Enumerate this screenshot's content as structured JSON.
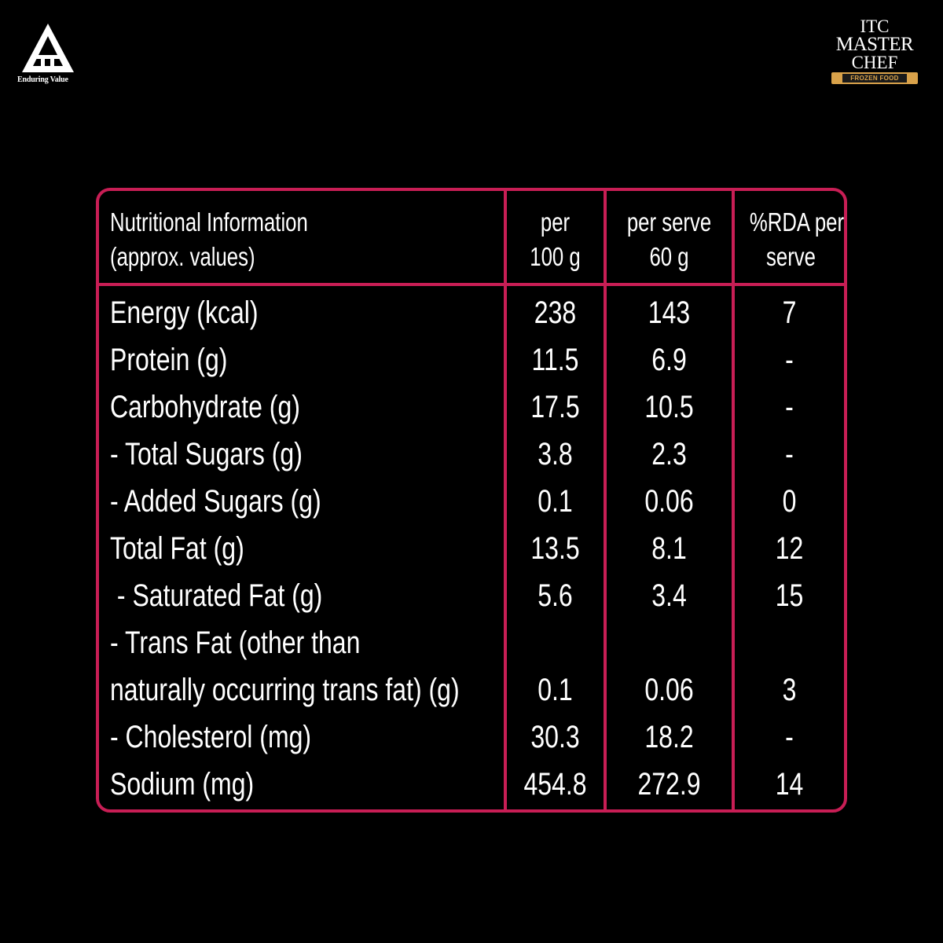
{
  "brand": {
    "itc_tagline": "Enduring Value",
    "itc_logo_letters": "ITC",
    "masterchef": {
      "line1": "ITC",
      "line2": "MASTER",
      "line3": "CHEF",
      "badge": "FROZEN FOOD"
    },
    "colors": {
      "background": "#000000",
      "table_border": "#c81e55",
      "badge_gold": "#d9a24a",
      "text": "#ffffff"
    }
  },
  "table": {
    "header": {
      "name_line1": "Nutritional Information",
      "name_line2": "(approx. values)",
      "col1_line1": "per",
      "col1_line2": "100 g",
      "col2_line1": "per serve",
      "col2_line2": "60 g",
      "col3_line1": "%RDA per",
      "col3_line2": "serve"
    },
    "rows": [
      {
        "name": "Energy (kcal)",
        "per100": "238",
        "perServe": "143",
        "rda": "7"
      },
      {
        "name": "Protein (g)",
        "per100": "11.5",
        "perServe": "6.9",
        "rda": "-"
      },
      {
        "name": "Carbohydrate (g)",
        "per100": "17.5",
        "perServe": "10.5",
        "rda": "-"
      },
      {
        "name": "- Total Sugars (g)",
        "per100": "3.8",
        "perServe": "2.3",
        "rda": "-"
      },
      {
        "name": "- Added Sugars (g)",
        "per100": "0.1",
        "perServe": "0.06",
        "rda": "0"
      },
      {
        "name": "Total Fat (g)",
        "per100": "13.5",
        "perServe": "8.1",
        "rda": "12"
      },
      {
        "name": " - Saturated Fat (g)",
        "per100": "5.6",
        "perServe": "3.4",
        "rda": "15"
      },
      {
        "name": "- Trans Fat (other than",
        "per100": "",
        "perServe": "",
        "rda": ""
      },
      {
        "name": "naturally occurring trans fat) (g)",
        "per100": "0.1",
        "perServe": "0.06",
        "rda": "3"
      },
      {
        "name": "- Cholesterol (mg)",
        "per100": "30.3",
        "perServe": "18.2",
        "rda": "-"
      },
      {
        "name": "Sodium (mg)",
        "per100": "454.8",
        "perServe": "272.9",
        "rda": "14"
      }
    ]
  }
}
